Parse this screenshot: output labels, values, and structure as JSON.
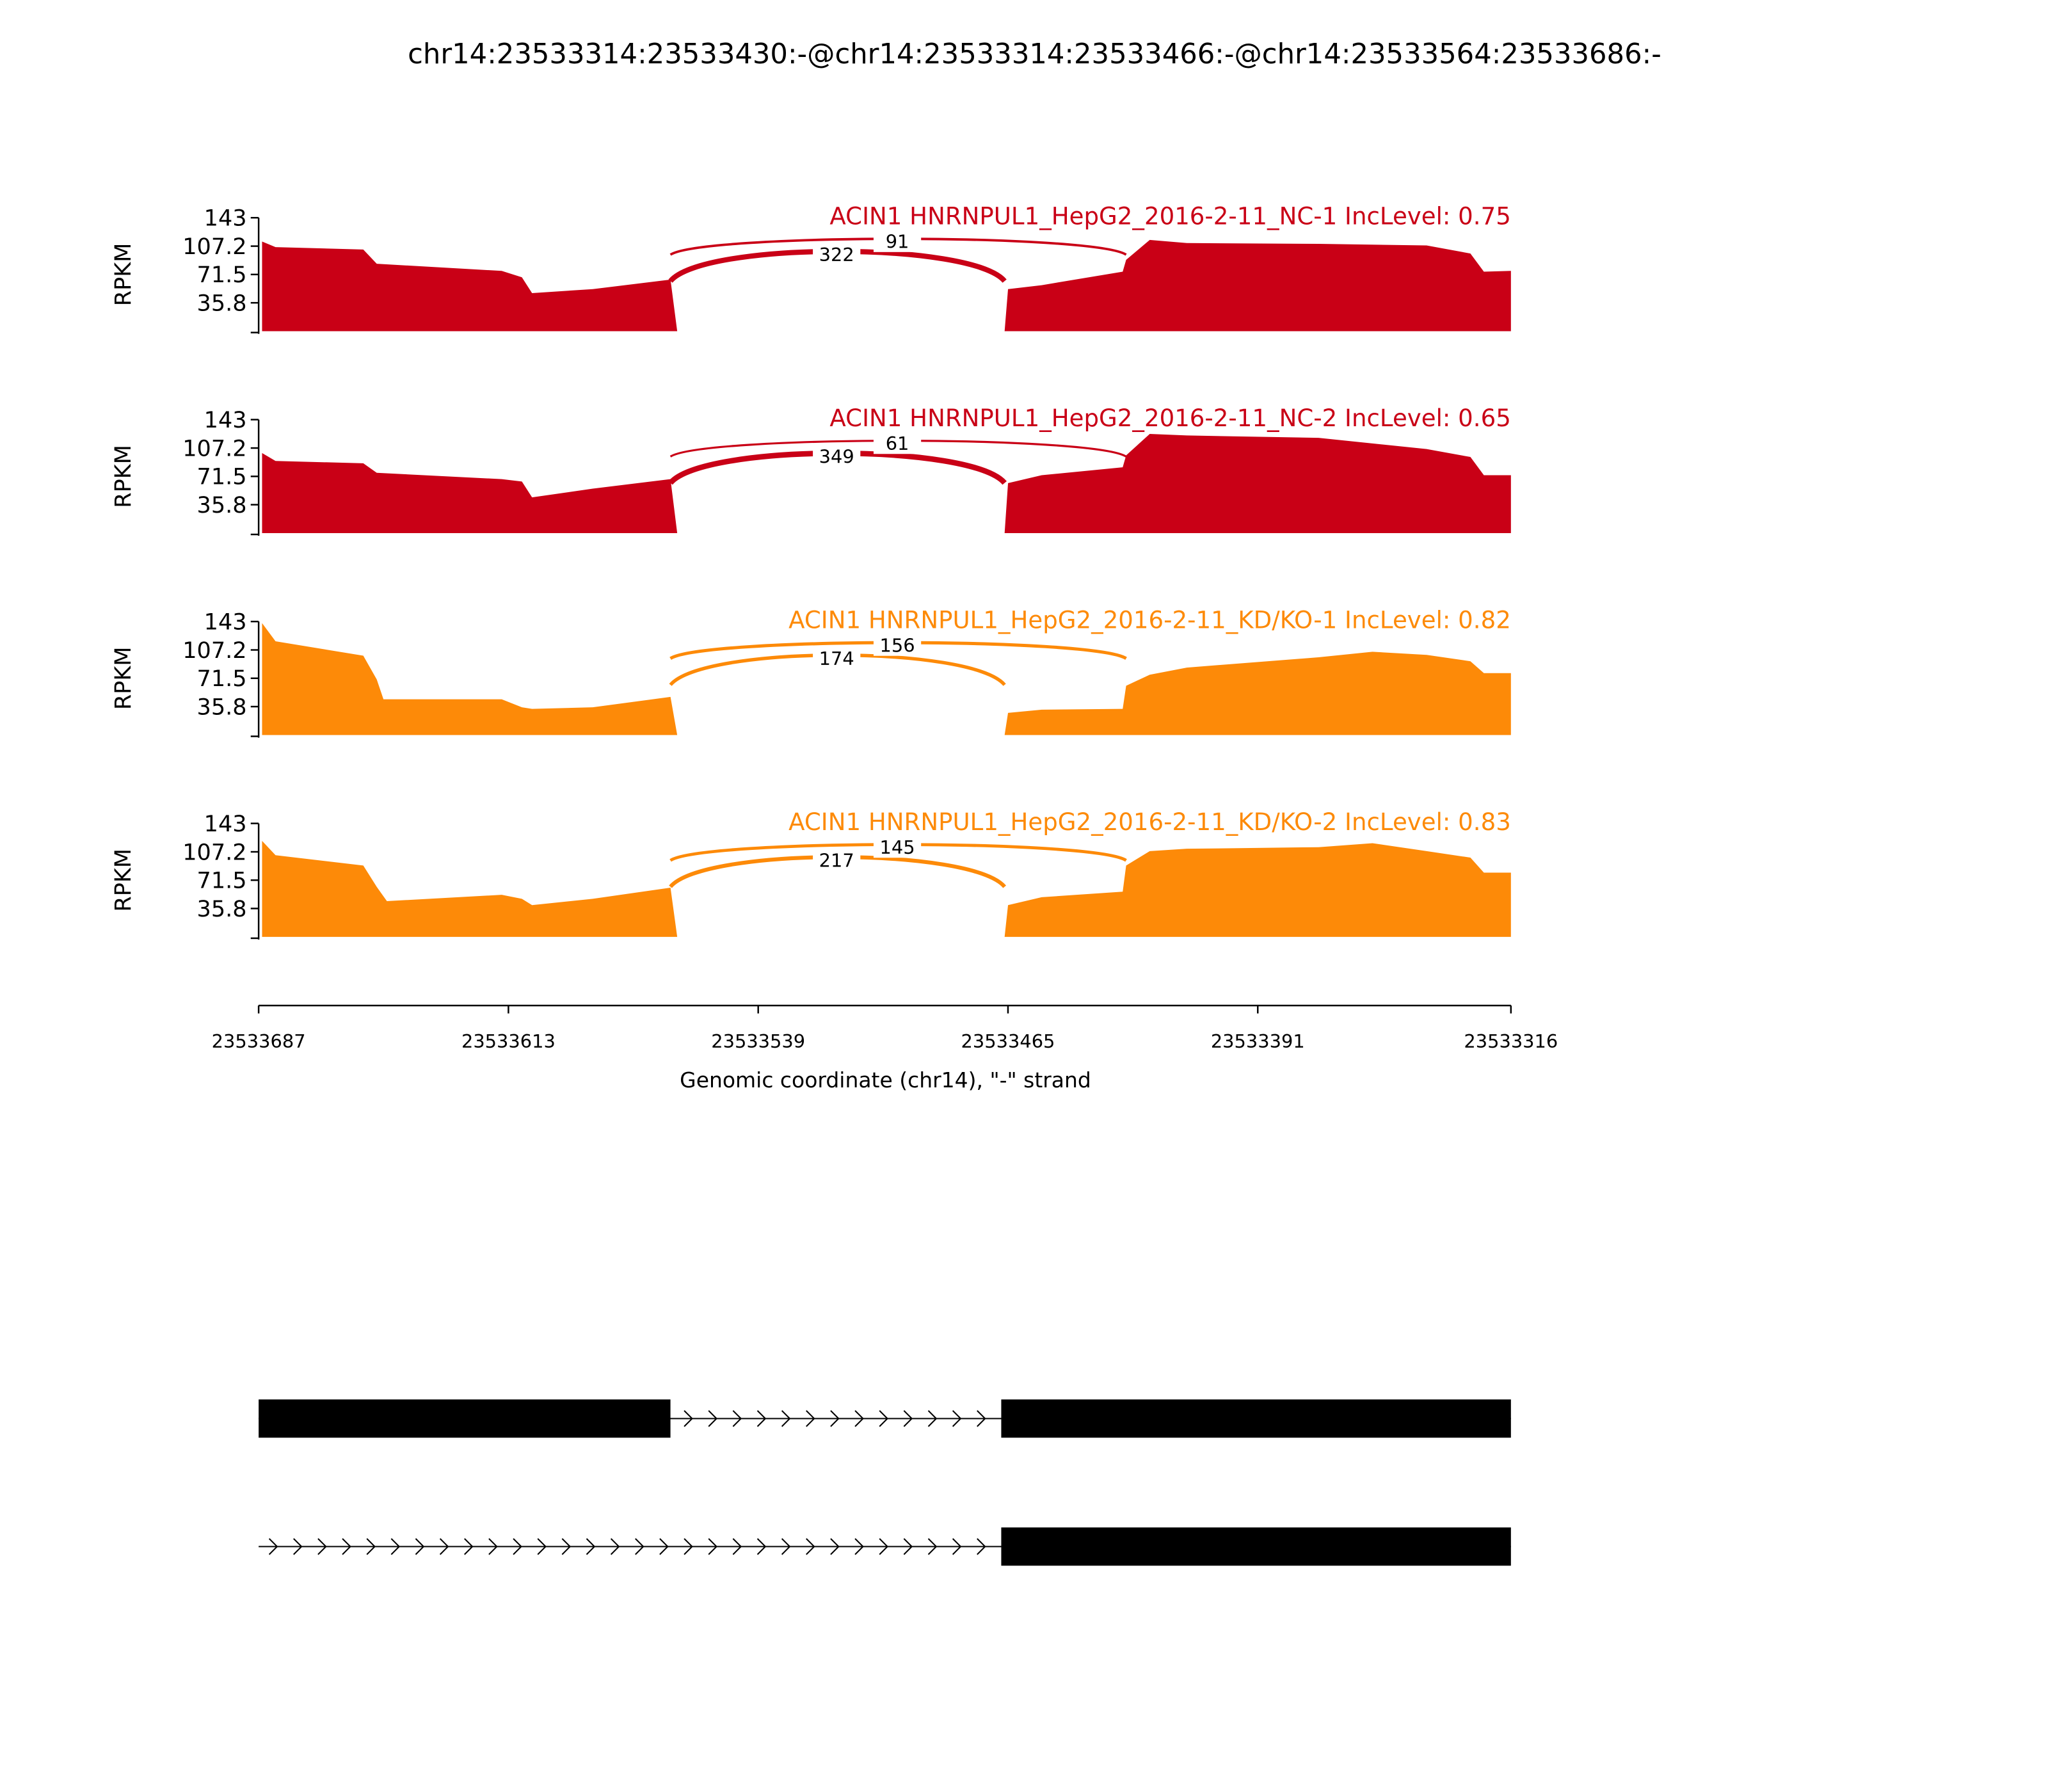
{
  "chart_data": {
    "type": "sashimi",
    "title": "chr14:23533314:23533430:-@chr14:23533314:23533466:-@chr14:23533564:23533686:-",
    "ylabel": "RPKM",
    "ylim": [
      0,
      143
    ],
    "yticks": [
      35.8,
      71.5,
      107.2,
      143
    ],
    "xlabel": "Genomic coordinate (chr14), \"-\" strand",
    "xlim": [
      23533687,
      23533316
    ],
    "xticks": [
      23533687,
      23533613,
      23533539,
      23533465,
      23533391,
      23533316
    ],
    "tracks": [
      {
        "name": "ACIN1 HNRNPUL1_HepG2_2016-2-11_NC-1 IncLevel: 0.75",
        "color": "#c90016",
        "x": [
          23533686,
          23533682,
          23533656,
          23533652,
          23533615,
          23533609,
          23533606,
          23533588,
          23533565,
          23533563,
          23533466,
          23533465,
          23533455,
          23533431,
          23533430,
          23533423,
          23533412,
          23533373,
          23533341,
          23533328,
          23533324,
          23533316
        ],
        "values": [
          113,
          106,
          103,
          85,
          76,
          68,
          48,
          53,
          65,
          0,
          0,
          53,
          58,
          75,
          90,
          115,
          111,
          110,
          108,
          98,
          75,
          76
        ],
        "junctions": [
          {
            "x": [
              23533565,
              23533466
            ],
            "count": 322
          },
          {
            "x": [
              23533565,
              23533430
            ],
            "count": 91
          }
        ]
      },
      {
        "name": "ACIN1 HNRNPUL1_HepG2_2016-2-11_NC-2 IncLevel: 0.65",
        "color": "#c90016",
        "x": [
          23533686,
          23533682,
          23533656,
          23533652,
          23533615,
          23533609,
          23533606,
          23533588,
          23533565,
          23533563,
          23533466,
          23533465,
          23533455,
          23533431,
          23533430,
          23533423,
          23533412,
          23533373,
          23533341,
          23533328,
          23533324,
          23533316
        ],
        "values": [
          101,
          91,
          88,
          76,
          68,
          65,
          45,
          56,
          68,
          0,
          0,
          63,
          73,
          83,
          98,
          125,
          123,
          120,
          106,
          96,
          73,
          73
        ],
        "junctions": [
          {
            "x": [
              23533565,
              23533466
            ],
            "count": 349
          },
          {
            "x": [
              23533565,
              23533430
            ],
            "count": 61
          }
        ]
      },
      {
        "name": "ACIN1 HNRNPUL1_HepG2_2016-2-11_KD/KO-1 IncLevel: 0.82",
        "color": "#fd8a08",
        "x": [
          23533686,
          23533682,
          23533656,
          23533652,
          23533650,
          23533615,
          23533609,
          23533606,
          23533588,
          23533565,
          23533563,
          23533466,
          23533465,
          23533455,
          23533431,
          23533430,
          23533423,
          23533412,
          23533373,
          23533357,
          23533341,
          23533328,
          23533324,
          23533316
        ],
        "values": [
          141,
          118,
          100,
          70,
          45,
          45,
          35,
          33,
          35,
          48,
          0,
          0,
          28,
          32,
          33,
          62,
          76,
          85,
          98,
          105,
          101,
          93,
          78,
          78
        ],
        "junctions": [
          {
            "x": [
              23533565,
              23533466
            ],
            "count": 174
          },
          {
            "x": [
              23533565,
              23533430
            ],
            "count": 156
          }
        ]
      },
      {
        "name": "ACIN1 HNRNPUL1_HepG2_2016-2-11_KD/KO-2 IncLevel: 0.83",
        "color": "#fd8a08",
        "x": [
          23533686,
          23533682,
          23533656,
          23533652,
          23533649,
          23533615,
          23533609,
          23533606,
          23533588,
          23533565,
          23533563,
          23533466,
          23533465,
          23533455,
          23533431,
          23533430,
          23533423,
          23533412,
          23533373,
          23533357,
          23533341,
          23533328,
          23533324,
          23533316
        ],
        "values": [
          121,
          103,
          90,
          63,
          45,
          53,
          48,
          40,
          48,
          62,
          0,
          0,
          40,
          50,
          57,
          90,
          108,
          111,
          113,
          118,
          108,
          100,
          81,
          81
        ],
        "junctions": [
          {
            "x": [
              23533565,
              23533466
            ],
            "count": 217
          },
          {
            "x": [
              23533565,
              23533430
            ],
            "count": 145
          }
        ]
      }
    ],
    "transcripts": [
      {
        "start": 23533687,
        "end": 23533316,
        "exons": [
          [
            23533687,
            23533565
          ],
          [
            23533467,
            23533316
          ]
        ]
      },
      {
        "start": 23533687,
        "end": 23533316,
        "exons": [
          [
            23533467,
            23533316
          ]
        ]
      }
    ]
  }
}
